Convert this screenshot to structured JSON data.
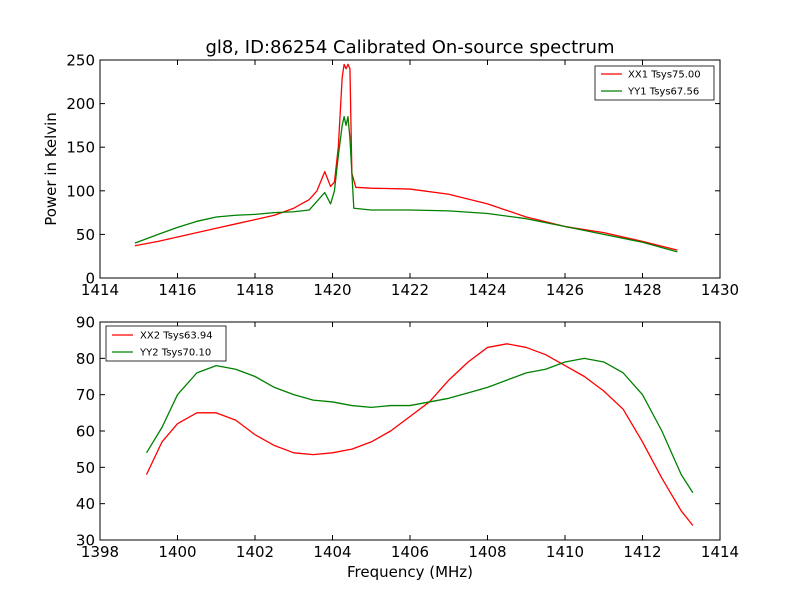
{
  "chart_data": [
    {
      "type": "line",
      "title": "gl8, ID:86254 Calibrated On-source spectrum",
      "xlabel": "",
      "ylabel": "Power in Kelvin",
      "xlim": [
        1414,
        1430
      ],
      "ylim": [
        0,
        250
      ],
      "xticks": [
        1414,
        1416,
        1418,
        1420,
        1422,
        1424,
        1426,
        1428,
        1430
      ],
      "yticks": [
        0,
        50,
        100,
        150,
        200,
        250
      ],
      "grid": false,
      "legend_position": "top-right",
      "series": [
        {
          "name": "XX1 Tsys75.00",
          "color": "#ff0000",
          "points": [
            [
              1414.9,
              37
            ],
            [
              1415.5,
              42
            ],
            [
              1416.0,
              47
            ],
            [
              1416.5,
              52
            ],
            [
              1417.0,
              57
            ],
            [
              1417.5,
              62
            ],
            [
              1418.0,
              67
            ],
            [
              1418.5,
              72
            ],
            [
              1419.0,
              80
            ],
            [
              1419.4,
              90
            ],
            [
              1419.6,
              100
            ],
            [
              1419.8,
              122
            ],
            [
              1419.95,
              105
            ],
            [
              1420.05,
              110
            ],
            [
              1420.15,
              150
            ],
            [
              1420.25,
              230
            ],
            [
              1420.3,
              245
            ],
            [
              1420.35,
              240
            ],
            [
              1420.4,
              245
            ],
            [
              1420.45,
              240
            ],
            [
              1420.5,
              120
            ],
            [
              1420.6,
              104
            ],
            [
              1421.0,
              103
            ],
            [
              1422.0,
              102
            ],
            [
              1423.0,
              96
            ],
            [
              1424.0,
              85
            ],
            [
              1425.0,
              70
            ],
            [
              1426.0,
              59
            ],
            [
              1427.0,
              52
            ],
            [
              1428.0,
              42
            ],
            [
              1428.9,
              32
            ]
          ]
        },
        {
          "name": "YY1 Tsys67.56",
          "color": "#008000",
          "points": [
            [
              1414.9,
              40
            ],
            [
              1415.5,
              50
            ],
            [
              1416.0,
              58
            ],
            [
              1416.5,
              65
            ],
            [
              1417.0,
              70
            ],
            [
              1417.5,
              72
            ],
            [
              1418.0,
              73
            ],
            [
              1418.5,
              75
            ],
            [
              1419.0,
              76
            ],
            [
              1419.4,
              78
            ],
            [
              1419.6,
              88
            ],
            [
              1419.8,
              98
            ],
            [
              1419.95,
              85
            ],
            [
              1420.05,
              100
            ],
            [
              1420.15,
              140
            ],
            [
              1420.25,
              175
            ],
            [
              1420.3,
              185
            ],
            [
              1420.35,
              175
            ],
            [
              1420.4,
              185
            ],
            [
              1420.45,
              160
            ],
            [
              1420.55,
              80
            ],
            [
              1421.0,
              78
            ],
            [
              1422.0,
              78
            ],
            [
              1423.0,
              77
            ],
            [
              1424.0,
              74
            ],
            [
              1425.0,
              68
            ],
            [
              1426.0,
              59
            ],
            [
              1427.0,
              50
            ],
            [
              1428.0,
              41
            ],
            [
              1428.9,
              30
            ]
          ]
        }
      ]
    },
    {
      "type": "line",
      "title": "",
      "xlabel": "Frequency (MHz)",
      "ylabel": "",
      "xlim": [
        1398,
        1414
      ],
      "ylim": [
        30,
        90
      ],
      "xticks": [
        1398,
        1400,
        1402,
        1404,
        1406,
        1408,
        1410,
        1412,
        1414
      ],
      "yticks": [
        30,
        40,
        50,
        60,
        70,
        80,
        90
      ],
      "grid": false,
      "legend_position": "top-left",
      "series": [
        {
          "name": "XX2 Tsys63.94",
          "color": "#ff0000",
          "points": [
            [
              1399.2,
              48
            ],
            [
              1399.6,
              57
            ],
            [
              1400.0,
              62
            ],
            [
              1400.5,
              65
            ],
            [
              1401.0,
              65
            ],
            [
              1401.5,
              63
            ],
            [
              1402.0,
              59
            ],
            [
              1402.5,
              56
            ],
            [
              1403.0,
              54
            ],
            [
              1403.5,
              53.5
            ],
            [
              1404.0,
              54
            ],
            [
              1404.5,
              55
            ],
            [
              1405.0,
              57
            ],
            [
              1405.5,
              60
            ],
            [
              1406.0,
              64
            ],
            [
              1406.5,
              68
            ],
            [
              1407.0,
              74
            ],
            [
              1407.5,
              79
            ],
            [
              1408.0,
              83
            ],
            [
              1408.5,
              84
            ],
            [
              1409.0,
              83
            ],
            [
              1409.5,
              81
            ],
            [
              1410.0,
              78
            ],
            [
              1410.5,
              75
            ],
            [
              1411.0,
              71
            ],
            [
              1411.5,
              66
            ],
            [
              1412.0,
              57
            ],
            [
              1412.5,
              47
            ],
            [
              1413.0,
              38
            ],
            [
              1413.3,
              34
            ]
          ]
        },
        {
          "name": "YY2 Tsys70.10",
          "color": "#008000",
          "points": [
            [
              1399.2,
              54
            ],
            [
              1399.6,
              61
            ],
            [
              1400.0,
              70
            ],
            [
              1400.5,
              76
            ],
            [
              1401.0,
              78
            ],
            [
              1401.5,
              77
            ],
            [
              1402.0,
              75
            ],
            [
              1402.5,
              72
            ],
            [
              1403.0,
              70
            ],
            [
              1403.5,
              68.5
            ],
            [
              1404.0,
              68
            ],
            [
              1404.5,
              67
            ],
            [
              1405.0,
              66.5
            ],
            [
              1405.5,
              67
            ],
            [
              1406.0,
              67
            ],
            [
              1406.5,
              68
            ],
            [
              1407.0,
              69
            ],
            [
              1407.5,
              70.5
            ],
            [
              1408.0,
              72
            ],
            [
              1408.5,
              74
            ],
            [
              1409.0,
              76
            ],
            [
              1409.5,
              77
            ],
            [
              1410.0,
              79
            ],
            [
              1410.5,
              80
            ],
            [
              1411.0,
              79
            ],
            [
              1411.5,
              76
            ],
            [
              1412.0,
              70
            ],
            [
              1412.5,
              60
            ],
            [
              1413.0,
              48
            ],
            [
              1413.3,
              43
            ]
          ]
        }
      ]
    }
  ]
}
